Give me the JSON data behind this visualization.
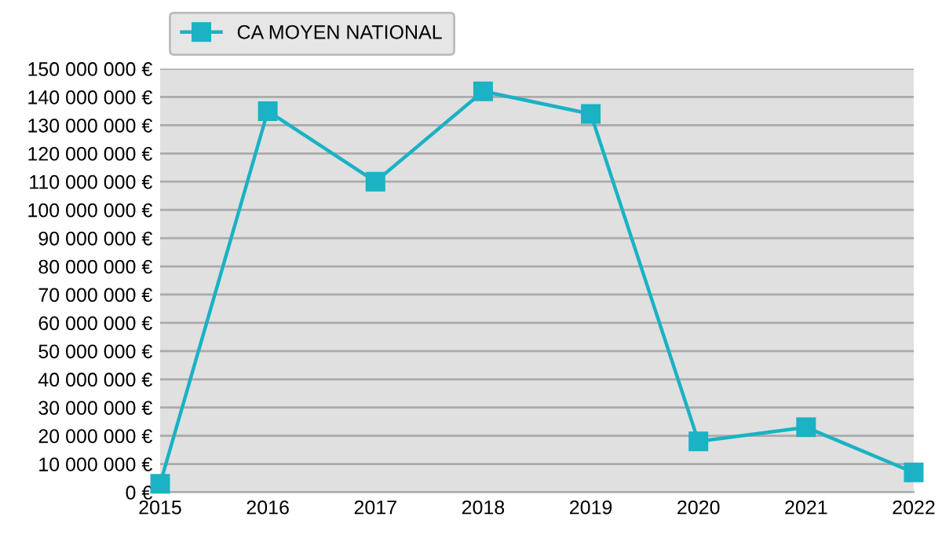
{
  "chart_data": {
    "type": "line",
    "categories": [
      "2015",
      "2016",
      "2017",
      "2018",
      "2019",
      "2020",
      "2021",
      "2022"
    ],
    "series": [
      {
        "name": "CA MOYEN NATIONAL",
        "color": "#1ab2c4",
        "values": [
          3000000,
          135000000,
          110000000,
          142000000,
          134000000,
          18000000,
          23000000,
          7000000
        ]
      }
    ],
    "ylim": [
      0,
      150000000
    ],
    "yticks": [
      {
        "value": 0,
        "label": "0 €"
      },
      {
        "value": 10000000,
        "label": "10 000 000 €"
      },
      {
        "value": 20000000,
        "label": "20 000 000 €"
      },
      {
        "value": 30000000,
        "label": "30 000 000 €"
      },
      {
        "value": 40000000,
        "label": "40 000 000 €"
      },
      {
        "value": 50000000,
        "label": "50 000 000 €"
      },
      {
        "value": 60000000,
        "label": "60 000 000 €"
      },
      {
        "value": 70000000,
        "label": "70 000 000 €"
      },
      {
        "value": 80000000,
        "label": "80 000 000 €"
      },
      {
        "value": 90000000,
        "label": "90 000 000 €"
      },
      {
        "value": 100000000,
        "label": "100 000 000 €"
      },
      {
        "value": 110000000,
        "label": "110 000 000 €"
      },
      {
        "value": 120000000,
        "label": "120 000 000 €"
      },
      {
        "value": 130000000,
        "label": "130 000 000 €"
      },
      {
        "value": 140000000,
        "label": "140 000 000 €"
      },
      {
        "value": 150000000,
        "label": "150 000 000 €"
      }
    ],
    "grid": "y",
    "legend": "top left",
    "marker": "square",
    "line_style": "solid"
  }
}
